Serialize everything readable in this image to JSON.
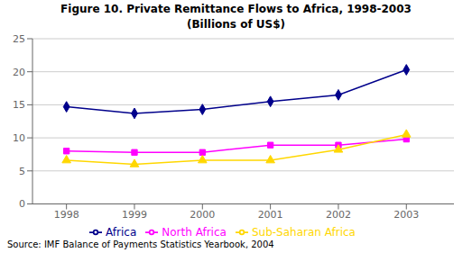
{
  "chart_data": {
    "type": "line",
    "title": "Figure 10. Private Remittance Flows to Africa, 1998-2003",
    "subtitle": "(Billions of US$)",
    "annotations": [
      "Source: IMF Balance of Payments Statistics Yearbook, 2004"
    ],
    "x": [
      1998,
      1999,
      2000,
      2001,
      2002,
      2003
    ],
    "series": [
      {
        "name": "Africa",
        "color": "#00008B",
        "marker": "diamond",
        "values": [
          14.7,
          13.7,
          14.3,
          15.5,
          16.5,
          20.3
        ]
      },
      {
        "name": "North Africa",
        "color": "#FF00FF",
        "marker": "square",
        "values": [
          8.0,
          7.8,
          7.8,
          8.9,
          8.9,
          9.8
        ]
      },
      {
        "name": "Sub-Saharan Africa",
        "color": "#FFD700",
        "marker": "triangle",
        "values": [
          6.6,
          6.0,
          6.6,
          6.6,
          8.2,
          10.5
        ]
      }
    ],
    "xlim": [
      1997.5,
      2003.7
    ],
    "xticks": [
      1998,
      1999,
      2000,
      2001,
      2002,
      2003
    ],
    "ylim": [
      0,
      25
    ],
    "yticks": [
      0,
      5,
      10,
      15,
      20,
      25
    ],
    "grid": true,
    "legend": "bottom"
  }
}
